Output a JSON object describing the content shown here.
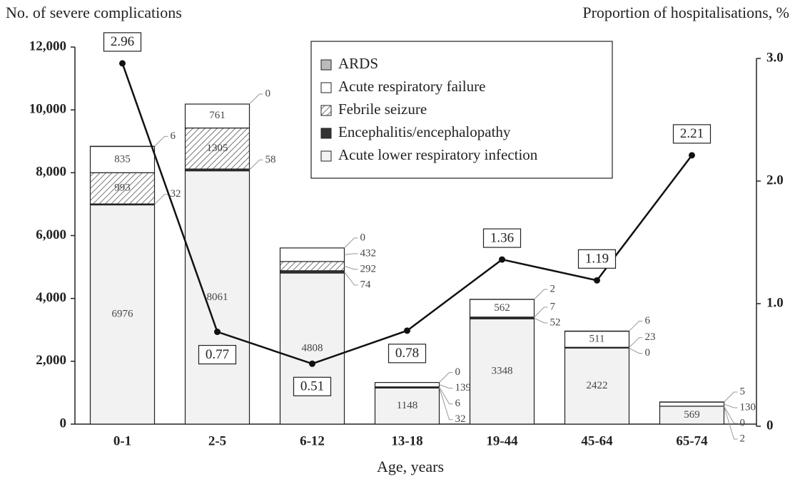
{
  "chart_data": {
    "type": "bar",
    "y_axis_label": "No. of severe complications",
    "y2_axis_label": "Proportion of hospitalisations, %",
    "x_axis_label": "Age, years",
    "categories": [
      "0-1",
      "2-5",
      "6-12",
      "13-18",
      "19-44",
      "45-64",
      "65-74"
    ],
    "stacked": true,
    "series": [
      {
        "name": "Acute lower respiratory infection",
        "color": "#f2f2f2",
        "values": [
          6976,
          8061,
          4808,
          1148,
          3348,
          2422,
          569
        ]
      },
      {
        "name": "Encephalitis/encephalopathy",
        "color": "#333333",
        "values": [
          32,
          58,
          74,
          32,
          52,
          0,
          2
        ]
      },
      {
        "name": "Febrile seizure",
        "color": "#ffffff",
        "pattern": "hatch",
        "values": [
          993,
          1305,
          292,
          6,
          7,
          23,
          0
        ]
      },
      {
        "name": "Acute respiratory failure",
        "color": "#ffffff",
        "values": [
          835,
          761,
          432,
          139,
          562,
          511,
          130
        ]
      },
      {
        "name": "ARDS",
        "color": "#bbbbbb",
        "values": [
          6,
          0,
          0,
          0,
          2,
          6,
          5
        ]
      }
    ],
    "line": {
      "axis": "y2",
      "color": "#111111",
      "values": [
        2.96,
        0.77,
        0.51,
        0.78,
        1.36,
        1.19,
        2.21
      ]
    },
    "ylim": [
      0,
      12000
    ],
    "yticks": [
      0,
      {
        "value": 2000,
        "label": "2,000"
      },
      {
        "value": 4000,
        "label": "4,000"
      },
      {
        "value": 6000,
        "label": "6,000"
      },
      {
        "value": 8000,
        "label": "8,000"
      },
      {
        "value": 10000,
        "label": "10,000"
      },
      {
        "value": 12000,
        "label": "12,000"
      }
    ],
    "y2lim": [
      0,
      3
    ],
    "y2ticks": [
      0,
      {
        "value": 1,
        "label": "1.0"
      },
      {
        "value": 2,
        "label": "2.0"
      },
      {
        "value": 3,
        "label": "3.0"
      }
    ],
    "legend": "top-right"
  }
}
